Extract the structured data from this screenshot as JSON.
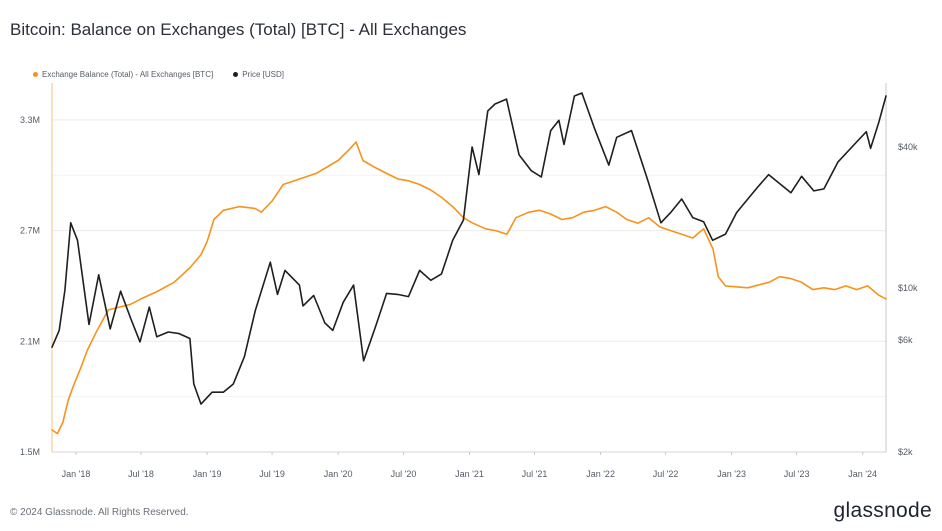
{
  "title": "Bitcoin: Balance on Exchanges (Total) [BTC] - All Exchanges",
  "legend": [
    {
      "label": "Exchange Balance (Total) - All Exchanges [BTC]",
      "color": "#f7931a"
    },
    {
      "label": "Price [USD]",
      "color": "#1f1f1f"
    }
  ],
  "footer": {
    "copyright": "© 2024 Glassnode. All Rights Reserved.",
    "brand": "glassnode"
  },
  "chart_data": {
    "type": "line",
    "x_ticks": [
      "Jan '18",
      "Jul '18",
      "Jan '19",
      "Jul '19",
      "Jan '20",
      "Jul '20",
      "Jan '21",
      "Jul '21",
      "Jan '22",
      "Jul '22",
      "Jan '23",
      "Jul '23",
      "Jan '24"
    ],
    "x_range": [
      "2017-10-26",
      "2024-03-06"
    ],
    "y_left": {
      "label": "",
      "ticks": [
        "1.5M",
        "2.1M",
        "2.7M",
        "3.3M"
      ],
      "tick_values": [
        1500000,
        2100000,
        2700000,
        3300000
      ],
      "range": [
        1500000,
        3500000
      ]
    },
    "y_right": {
      "label": "",
      "scale": "log",
      "ticks": [
        "$2k",
        "$6k",
        "$10k",
        "$40k"
      ],
      "tick_values": [
        2000,
        6000,
        10000,
        40000
      ],
      "range": [
        2000,
        75000
      ]
    },
    "grid": true,
    "legend_position": "top-left",
    "series": [
      {
        "name": "Exchange Balance (Total) - All Exchanges [BTC]",
        "color": "#f7931a",
        "axis": "left",
        "points": [
          [
            "2017-10-26",
            1620000
          ],
          [
            "2017-11-10",
            1600000
          ],
          [
            "2017-11-25",
            1660000
          ],
          [
            "2017-12-10",
            1780000
          ],
          [
            "2017-12-25",
            1860000
          ],
          [
            "2018-01-15",
            1960000
          ],
          [
            "2018-02-01",
            2050000
          ],
          [
            "2018-03-01",
            2160000
          ],
          [
            "2018-04-01",
            2270000
          ],
          [
            "2018-06-01",
            2300000
          ],
          [
            "2018-07-01",
            2330000
          ],
          [
            "2018-08-15",
            2370000
          ],
          [
            "2018-10-01",
            2420000
          ],
          [
            "2018-11-15",
            2500000
          ],
          [
            "2018-12-15",
            2570000
          ],
          [
            "2019-01-01",
            2640000
          ],
          [
            "2019-01-20",
            2760000
          ],
          [
            "2019-02-15",
            2810000
          ],
          [
            "2019-04-01",
            2830000
          ],
          [
            "2019-05-15",
            2820000
          ],
          [
            "2019-06-01",
            2800000
          ],
          [
            "2019-07-01",
            2860000
          ],
          [
            "2019-08-01",
            2950000
          ],
          [
            "2019-09-01",
            2970000
          ],
          [
            "2019-11-01",
            3010000
          ],
          [
            "2020-01-01",
            3080000
          ],
          [
            "2020-02-01",
            3140000
          ],
          [
            "2020-02-20",
            3180000
          ],
          [
            "2020-03-10",
            3080000
          ],
          [
            "2020-04-15",
            3040000
          ],
          [
            "2020-05-15",
            3010000
          ],
          [
            "2020-06-15",
            2980000
          ],
          [
            "2020-07-15",
            2970000
          ],
          [
            "2020-08-15",
            2950000
          ],
          [
            "2020-09-15",
            2920000
          ],
          [
            "2020-10-15",
            2880000
          ],
          [
            "2020-11-15",
            2830000
          ],
          [
            "2020-12-15",
            2770000
          ],
          [
            "2021-01-10",
            2740000
          ],
          [
            "2021-02-15",
            2710000
          ],
          [
            "2021-03-15",
            2700000
          ],
          [
            "2021-04-15",
            2680000
          ],
          [
            "2021-05-10",
            2770000
          ],
          [
            "2021-06-15",
            2800000
          ],
          [
            "2021-07-15",
            2810000
          ],
          [
            "2021-08-15",
            2790000
          ],
          [
            "2021-09-15",
            2760000
          ],
          [
            "2021-10-15",
            2770000
          ],
          [
            "2021-11-15",
            2800000
          ],
          [
            "2021-12-15",
            2810000
          ],
          [
            "2022-01-15",
            2830000
          ],
          [
            "2022-02-15",
            2800000
          ],
          [
            "2022-03-15",
            2760000
          ],
          [
            "2022-04-15",
            2740000
          ],
          [
            "2022-05-15",
            2770000
          ],
          [
            "2022-06-15",
            2720000
          ],
          [
            "2022-07-15",
            2700000
          ],
          [
            "2022-08-15",
            2680000
          ],
          [
            "2022-09-15",
            2660000
          ],
          [
            "2022-10-15",
            2710000
          ],
          [
            "2022-11-10",
            2600000
          ],
          [
            "2022-11-25",
            2450000
          ],
          [
            "2022-12-15",
            2400000
          ],
          [
            "2023-02-15",
            2390000
          ],
          [
            "2023-04-15",
            2420000
          ],
          [
            "2023-05-15",
            2450000
          ],
          [
            "2023-06-15",
            2440000
          ],
          [
            "2023-07-15",
            2420000
          ],
          [
            "2023-08-15",
            2380000
          ],
          [
            "2023-09-15",
            2390000
          ],
          [
            "2023-10-15",
            2380000
          ],
          [
            "2023-11-15",
            2400000
          ],
          [
            "2023-12-15",
            2380000
          ],
          [
            "2024-01-15",
            2400000
          ],
          [
            "2024-02-15",
            2350000
          ],
          [
            "2024-03-06",
            2330000
          ]
        ]
      },
      {
        "name": "Price [USD]",
        "color": "#1f1f1f",
        "axis": "right",
        "points": [
          [
            "2017-10-26",
            5600
          ],
          [
            "2017-11-15",
            6600
          ],
          [
            "2017-12-01",
            9800
          ],
          [
            "2017-12-17",
            19000
          ],
          [
            "2018-01-05",
            16000
          ],
          [
            "2018-02-06",
            7000
          ],
          [
            "2018-03-05",
            11400
          ],
          [
            "2018-04-06",
            6700
          ],
          [
            "2018-05-05",
            9700
          ],
          [
            "2018-06-01",
            7500
          ],
          [
            "2018-06-28",
            5900
          ],
          [
            "2018-07-24",
            8300
          ],
          [
            "2018-08-14",
            6200
          ],
          [
            "2018-09-15",
            6500
          ],
          [
            "2018-10-15",
            6400
          ],
          [
            "2018-11-14",
            6100
          ],
          [
            "2018-11-25",
            3900
          ],
          [
            "2018-12-15",
            3200
          ],
          [
            "2019-01-15",
            3600
          ],
          [
            "2019-02-15",
            3600
          ],
          [
            "2019-03-15",
            3900
          ],
          [
            "2019-04-15",
            5100
          ],
          [
            "2019-05-15",
            8000
          ],
          [
            "2019-06-26",
            12900
          ],
          [
            "2019-07-16",
            9400
          ],
          [
            "2019-08-06",
            11900
          ],
          [
            "2019-09-15",
            10300
          ],
          [
            "2019-09-25",
            8400
          ],
          [
            "2019-10-25",
            9300
          ],
          [
            "2019-11-25",
            7100
          ],
          [
            "2019-12-17",
            6600
          ],
          [
            "2020-01-15",
            8700
          ],
          [
            "2020-02-13",
            10300
          ],
          [
            "2020-03-12",
            4900
          ],
          [
            "2020-04-15",
            6900
          ],
          [
            "2020-05-15",
            9500
          ],
          [
            "2020-06-15",
            9400
          ],
          [
            "2020-07-15",
            9200
          ],
          [
            "2020-08-15",
            11900
          ],
          [
            "2020-09-15",
            10800
          ],
          [
            "2020-10-15",
            11500
          ],
          [
            "2020-11-15",
            16000
          ],
          [
            "2020-12-15",
            19500
          ],
          [
            "2021-01-08",
            40000
          ],
          [
            "2021-01-27",
            30500
          ],
          [
            "2021-02-21",
            57000
          ],
          [
            "2021-03-13",
            61000
          ],
          [
            "2021-04-14",
            64000
          ],
          [
            "2021-05-19",
            37000
          ],
          [
            "2021-06-22",
            31700
          ],
          [
            "2021-07-20",
            29800
          ],
          [
            "2021-08-15",
            47000
          ],
          [
            "2021-09-07",
            52000
          ],
          [
            "2021-09-21",
            41000
          ],
          [
            "2021-10-20",
            66000
          ],
          [
            "2021-11-10",
            68000
          ],
          [
            "2021-12-15",
            48000
          ],
          [
            "2022-01-24",
            33500
          ],
          [
            "2022-02-15",
            44000
          ],
          [
            "2022-03-28",
            47000
          ],
          [
            "2022-05-12",
            29000
          ],
          [
            "2022-06-18",
            19000
          ],
          [
            "2022-07-15",
            21000
          ],
          [
            "2022-08-15",
            24000
          ],
          [
            "2022-09-15",
            20000
          ],
          [
            "2022-10-15",
            19200
          ],
          [
            "2022-11-09",
            16000
          ],
          [
            "2022-12-15",
            17000
          ],
          [
            "2023-01-15",
            21000
          ],
          [
            "2023-02-15",
            24000
          ],
          [
            "2023-03-15",
            27000
          ],
          [
            "2023-04-14",
            30500
          ],
          [
            "2023-06-15",
            25500
          ],
          [
            "2023-07-15",
            30000
          ],
          [
            "2023-08-18",
            26000
          ],
          [
            "2023-09-15",
            26500
          ],
          [
            "2023-10-24",
            34500
          ],
          [
            "2023-12-15",
            42000
          ],
          [
            "2024-01-11",
            46500
          ],
          [
            "2024-01-23",
            39500
          ],
          [
            "2024-02-15",
            51000
          ],
          [
            "2024-03-06",
            66000
          ]
        ]
      }
    ]
  }
}
